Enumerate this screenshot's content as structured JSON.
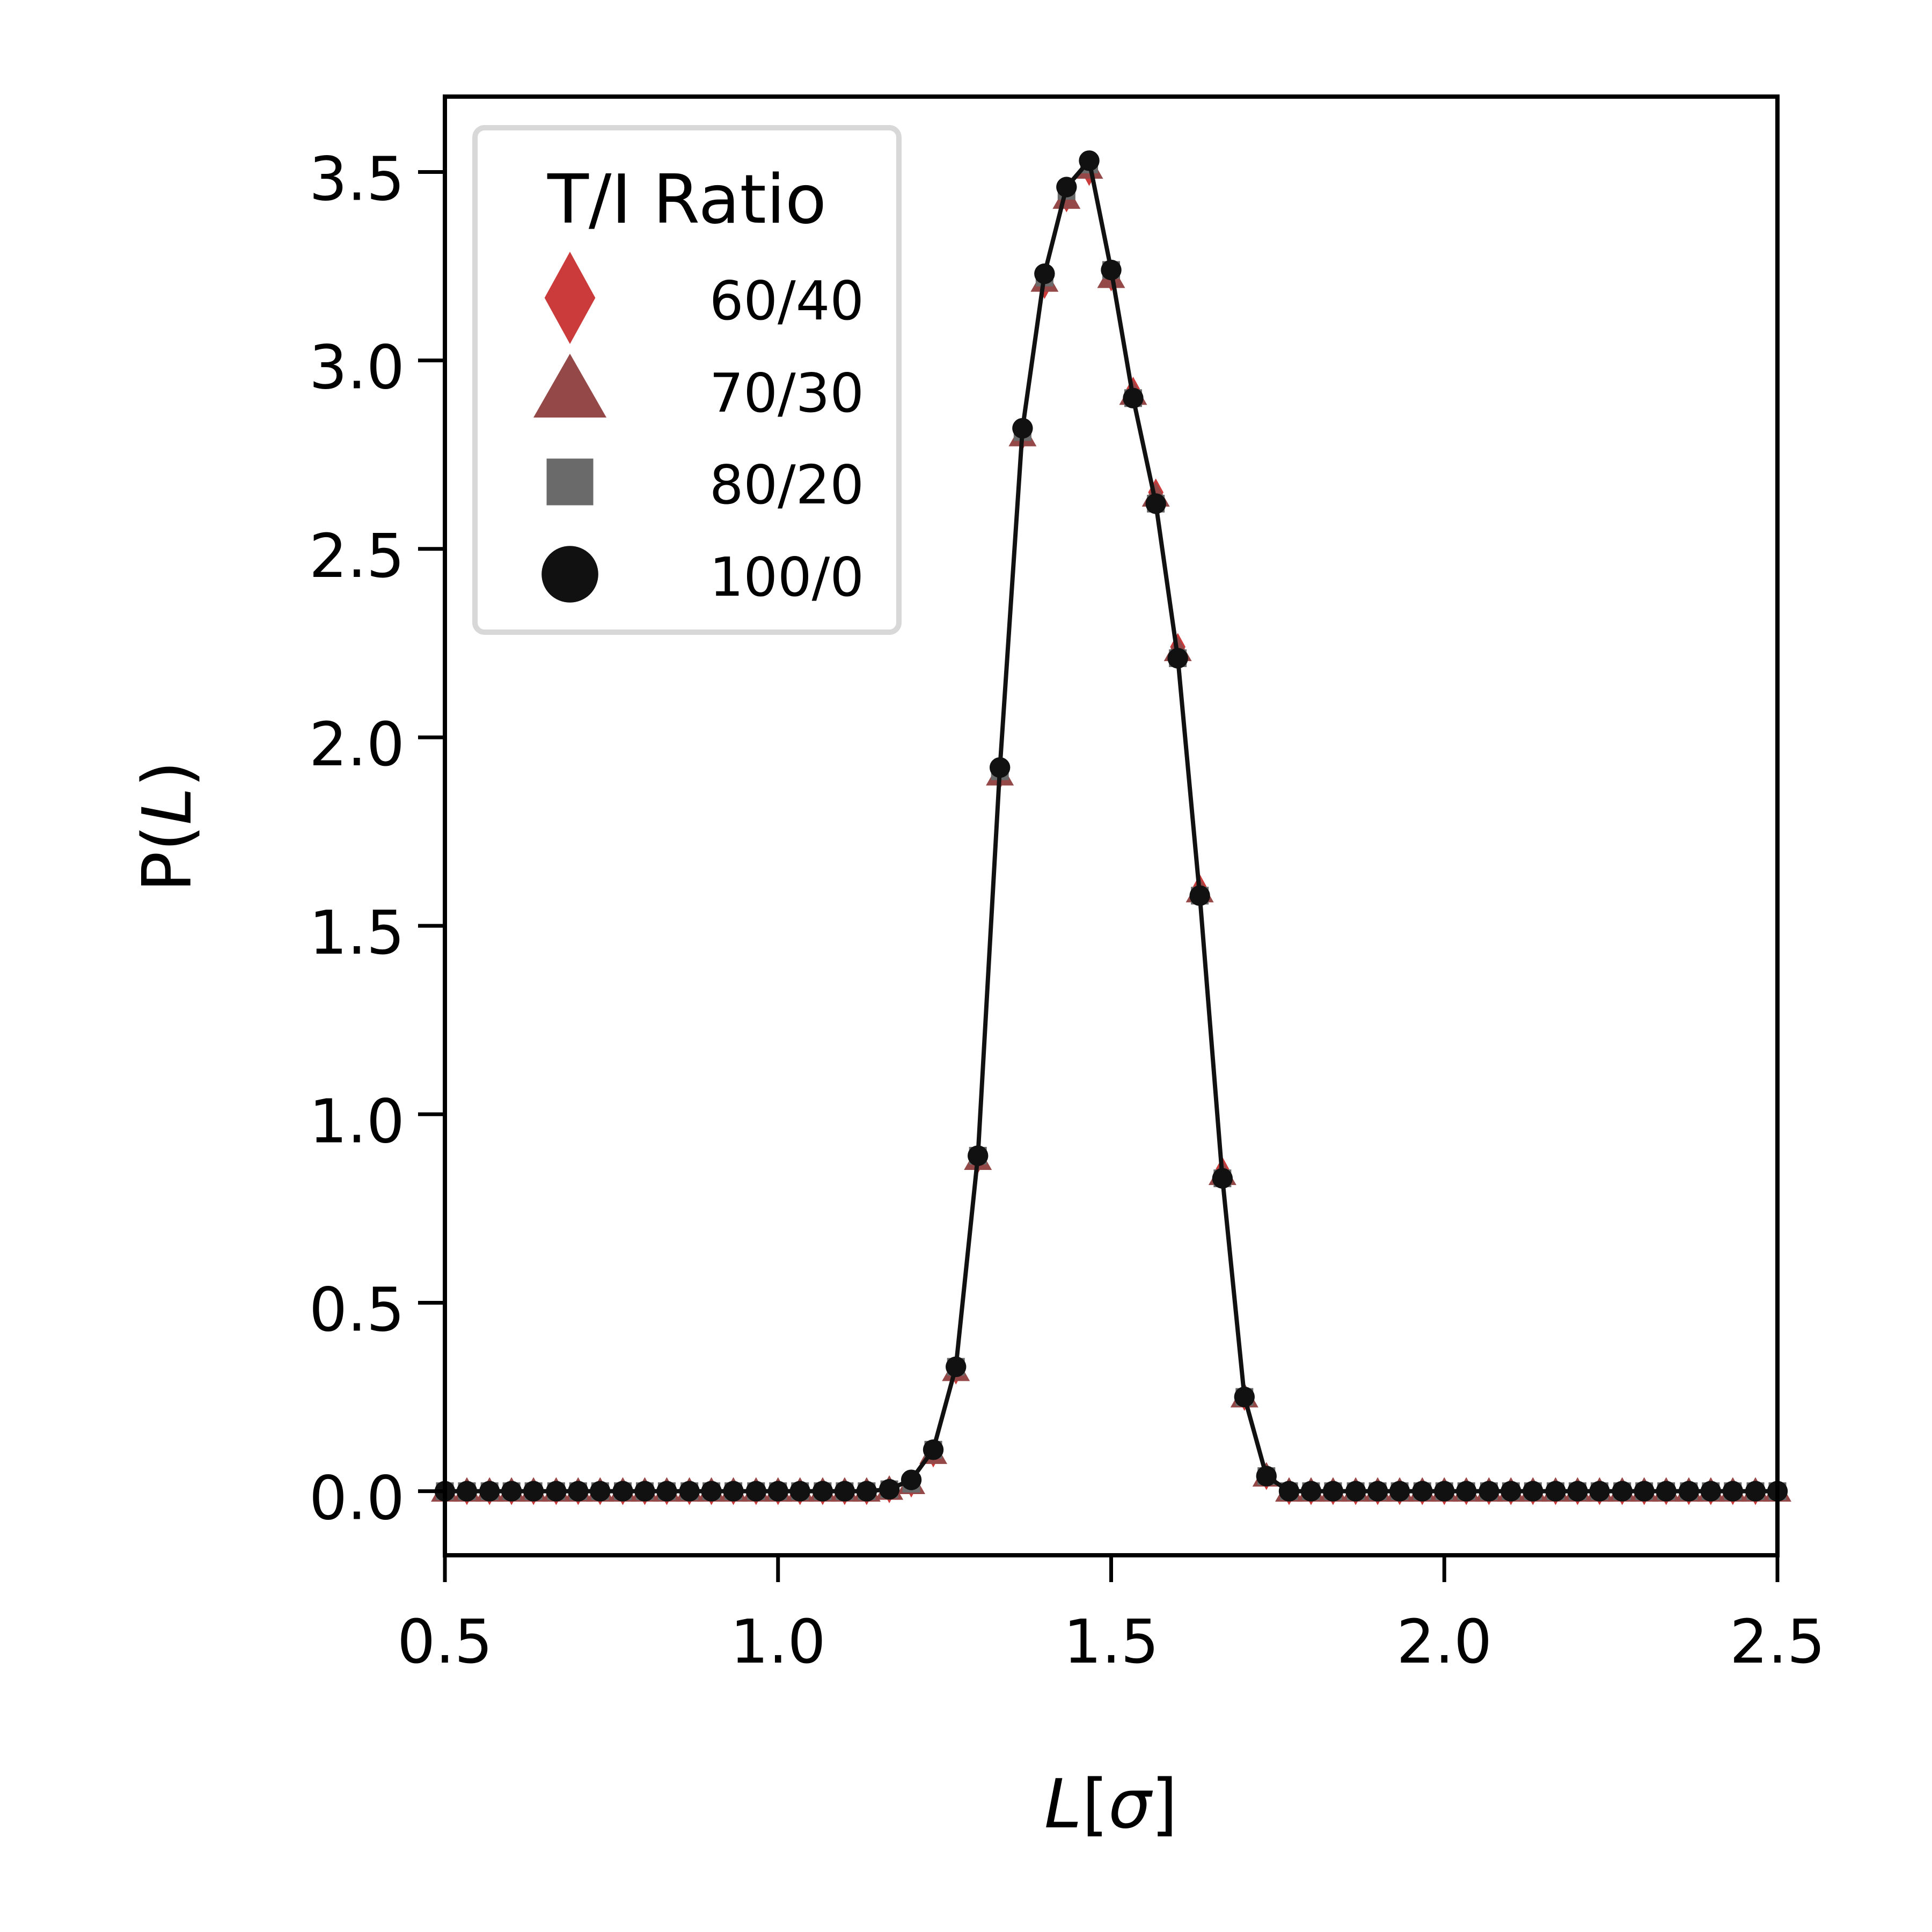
{
  "chart_data": {
    "type": "scatter",
    "xlabel_main": "L",
    "xlabel_unit": "σ",
    "ylabel_prefix": "P(",
    "ylabel_var": "L",
    "ylabel_suffix": ")",
    "xlim": [
      0.5,
      2.5
    ],
    "ylim": [
      -0.17,
      3.7
    ],
    "xticks": [
      0.5,
      1.0,
      1.5,
      2.0,
      2.5
    ],
    "yticks": [
      0.0,
      0.5,
      1.0,
      1.5,
      2.0,
      2.5,
      3.0,
      3.5
    ],
    "grid": false,
    "legend": {
      "title": "T/I Ratio",
      "placement": "top-left"
    },
    "line_color": "#111111",
    "x": [
      0.5,
      0.533,
      0.567,
      0.6,
      0.633,
      0.667,
      0.7,
      0.733,
      0.767,
      0.8,
      0.833,
      0.867,
      0.9,
      0.933,
      0.967,
      1.0,
      1.033,
      1.067,
      1.1,
      1.133,
      1.167,
      1.2,
      1.233,
      1.267,
      1.3,
      1.333,
      1.367,
      1.4,
      1.433,
      1.467,
      1.5,
      1.533,
      1.567,
      1.6,
      1.633,
      1.667,
      1.7,
      1.733,
      1.767,
      1.8,
      1.833,
      1.867,
      1.9,
      1.933,
      1.967,
      2.0,
      2.033,
      2.067,
      2.1,
      2.133,
      2.167,
      2.2,
      2.233,
      2.267,
      2.3,
      2.333,
      2.367,
      2.4,
      2.433,
      2.467,
      2.5
    ],
    "series": [
      {
        "name": "60/40",
        "marker": "diamond",
        "color": "#cc3b3b",
        "values": [
          0,
          0,
          0,
          0,
          0,
          0,
          0,
          0,
          0,
          0,
          0,
          0,
          0,
          0,
          0,
          0,
          0,
          0,
          0,
          0,
          0.005,
          0.02,
          0.1,
          0.32,
          0.88,
          1.9,
          2.8,
          3.2,
          3.43,
          3.5,
          3.22,
          2.92,
          2.65,
          2.24,
          1.6,
          0.85,
          0.25,
          0.04,
          0,
          0,
          0,
          0,
          0,
          0,
          0,
          0,
          0,
          0,
          0,
          0,
          0,
          0,
          0,
          0,
          0,
          0,
          0,
          0,
          0,
          0,
          0
        ]
      },
      {
        "name": "70/30",
        "marker": "triangle",
        "color": "#944848",
        "values": [
          0,
          0,
          0,
          0,
          0,
          0,
          0,
          0,
          0,
          0,
          0,
          0,
          0,
          0,
          0,
          0,
          0,
          0,
          0,
          0,
          0.005,
          0.02,
          0.1,
          0.32,
          0.88,
          1.9,
          2.8,
          3.21,
          3.43,
          3.51,
          3.22,
          2.91,
          2.64,
          2.23,
          1.59,
          0.84,
          0.25,
          0.04,
          0,
          0,
          0,
          0,
          0,
          0,
          0,
          0,
          0,
          0,
          0,
          0,
          0,
          0,
          0,
          0,
          0,
          0,
          0,
          0,
          0,
          0,
          0
        ]
      },
      {
        "name": "80/20",
        "marker": "square",
        "color": "#6a6a6a",
        "values": [
          0,
          0,
          0,
          0,
          0,
          0,
          0,
          0,
          0,
          0,
          0,
          0,
          0,
          0,
          0,
          0,
          0,
          0,
          0,
          0,
          0.005,
          0.02,
          0.11,
          0.33,
          0.89,
          1.91,
          2.81,
          3.22,
          3.45,
          3.52,
          3.24,
          2.9,
          2.62,
          2.21,
          1.58,
          0.83,
          0.25,
          0.04,
          0,
          0,
          0,
          0,
          0,
          0,
          0,
          0,
          0,
          0,
          0,
          0,
          0,
          0,
          0,
          0,
          0,
          0,
          0,
          0,
          0,
          0,
          0
        ]
      },
      {
        "name": "100/0",
        "marker": "circle",
        "color": "#111111",
        "values": [
          0,
          0,
          0,
          0,
          0,
          0,
          0,
          0,
          0,
          0,
          0,
          0,
          0,
          0,
          0,
          0,
          0,
          0,
          0,
          0,
          0.005,
          0.03,
          0.11,
          0.33,
          0.89,
          1.92,
          2.82,
          3.23,
          3.46,
          3.53,
          3.24,
          2.9,
          2.62,
          2.21,
          1.58,
          0.83,
          0.25,
          0.04,
          0,
          0,
          0,
          0,
          0,
          0,
          0,
          0,
          0,
          0,
          0,
          0,
          0,
          0,
          0,
          0,
          0,
          0,
          0,
          0,
          0,
          0,
          0
        ]
      }
    ]
  }
}
